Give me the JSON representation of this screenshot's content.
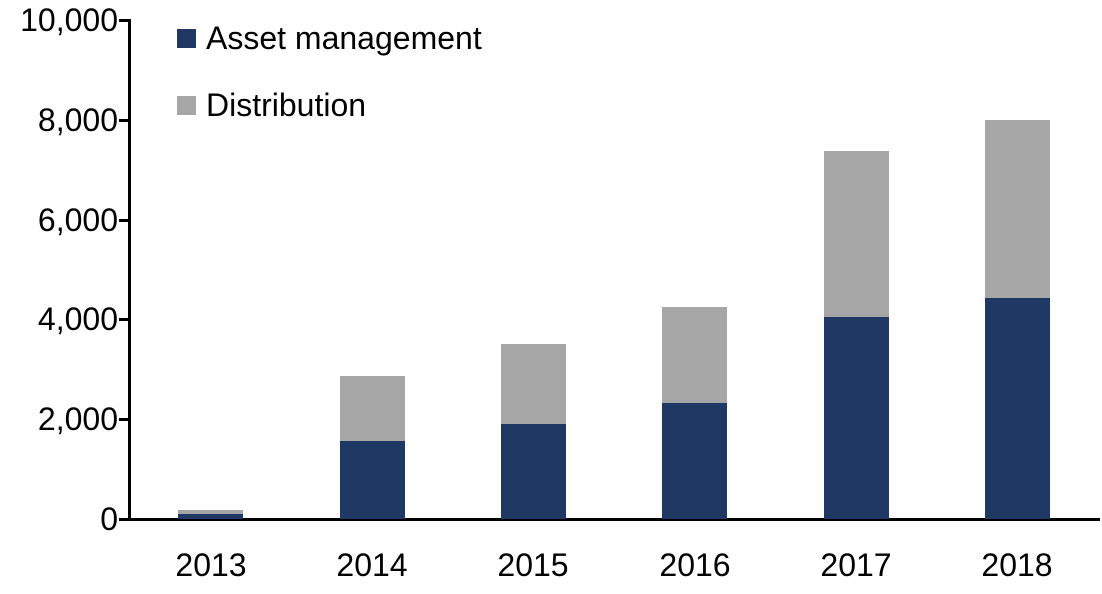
{
  "chart_data": {
    "type": "bar",
    "stacked": true,
    "title": "",
    "xlabel": "",
    "ylabel": "",
    "categories": [
      "2013",
      "2014",
      "2015",
      "2016",
      "2017",
      "2018"
    ],
    "series": [
      {
        "name": "Asset management",
        "color": "#1f3864",
        "values": [
          100,
          1560,
          1900,
          2320,
          4040,
          4420
        ]
      },
      {
        "name": "Distribution",
        "color": "#a6a6a6",
        "values": [
          90,
          1300,
          1600,
          1930,
          3340,
          3580
        ]
      }
    ],
    "totals": [
      190,
      2860,
      3500,
      4250,
      7380,
      8000
    ],
    "ylim": [
      0,
      10000
    ],
    "yticks": [
      0,
      2000,
      4000,
      6000,
      8000,
      10000
    ],
    "ytick_labels": [
      "0",
      "2,000",
      "4,000",
      "6,000",
      "8,000",
      "10,000"
    ],
    "grid": false,
    "legend_position": "top-left-inside",
    "axis_color": "#000000",
    "text_color": "#000000",
    "background_color": "#ffffff"
  }
}
